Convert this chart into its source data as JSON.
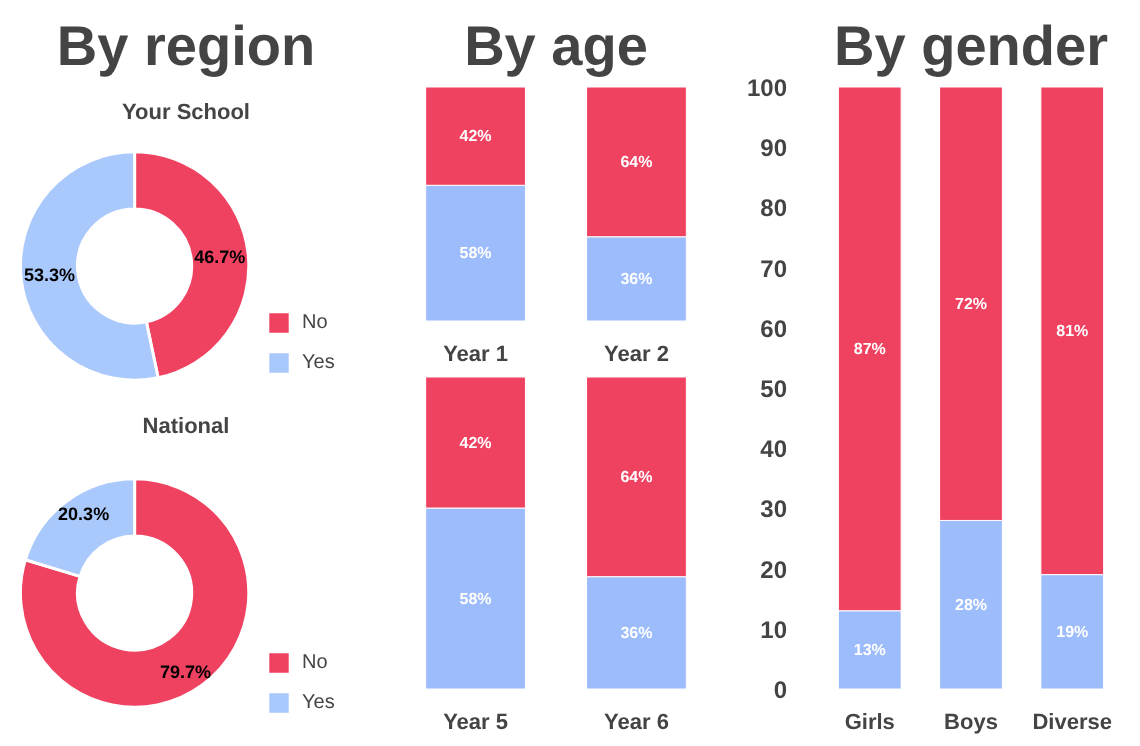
{
  "chart_data": [
    {
      "type": "donut",
      "title": "By region",
      "subtitle": "Your School",
      "categories": [
        "No",
        "Yes"
      ],
      "values": [
        46.7,
        53.3
      ],
      "colors": [
        "#ef4160",
        "#a9c8fb"
      ],
      "value_labels": [
        "46.7%",
        "53.3%"
      ],
      "legend": "bottom right"
    },
    {
      "type": "donut",
      "title": "National",
      "categories": [
        "No",
        "Yes"
      ],
      "values": [
        79.7,
        20.3
      ],
      "colors": [
        "#ef4160",
        "#a9c8fb"
      ],
      "value_labels": [
        "79.7%",
        "20.3%"
      ],
      "legend": "bottom right"
    },
    {
      "type": "bar",
      "title": "By age",
      "stacked": true,
      "tick_labels": "x",
      "categories": [
        "Year 1",
        "Year 2"
      ],
      "series": [
        {
          "color": "#9dbcfb",
          "values": [
            58,
            36
          ],
          "value_labels": [
            "58%",
            "36%"
          ]
        },
        {
          "color": "#ef4160",
          "values": [
            42,
            64
          ],
          "value_labels": [
            "42%",
            "64%"
          ]
        }
      ]
    },
    {
      "type": "bar",
      "stacked": true,
      "tick_labels": "x",
      "categories": [
        "Year 5",
        "Year 6"
      ],
      "series": [
        {
          "color": "#9dbcfb",
          "values": [
            58,
            36
          ],
          "value_labels": [
            "58%",
            "36%"
          ]
        },
        {
          "color": "#ef4160",
          "values": [
            42,
            64
          ],
          "value_labels": [
            "42%",
            "64%"
          ]
        }
      ]
    },
    {
      "type": "bar",
      "title": "By gender",
      "stacked": true,
      "categories": [
        "Girls",
        "Boys",
        "Diverse"
      ],
      "ylim": [
        0,
        100
      ],
      "yticks": [
        0,
        10,
        20,
        30,
        40,
        50,
        60,
        70,
        80,
        90,
        100
      ],
      "series": [
        {
          "color": "#9dbcfb",
          "values": [
            13,
            28,
            19
          ],
          "value_labels": [
            "13%",
            "28%",
            "19%"
          ]
        },
        {
          "color": "#ef4160",
          "values": [
            87,
            72,
            81
          ],
          "value_labels": [
            "87%",
            "72%",
            "81%"
          ]
        }
      ]
    }
  ]
}
